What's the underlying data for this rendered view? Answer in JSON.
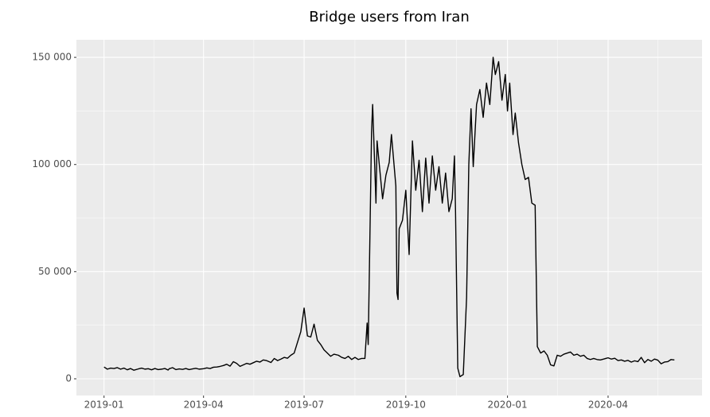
{
  "chart_data": {
    "type": "line",
    "title": "Bridge users from Iran",
    "x": [
      "2019-01-01",
      "2019-01-04",
      "2019-01-07",
      "2019-01-10",
      "2019-01-13",
      "2019-01-16",
      "2019-01-19",
      "2019-01-22",
      "2019-01-25",
      "2019-01-28",
      "2019-02-01",
      "2019-02-04",
      "2019-02-07",
      "2019-02-10",
      "2019-02-13",
      "2019-02-16",
      "2019-02-19",
      "2019-02-22",
      "2019-02-25",
      "2019-02-28",
      "2019-03-01",
      "2019-03-04",
      "2019-03-07",
      "2019-03-10",
      "2019-03-13",
      "2019-03-16",
      "2019-03-19",
      "2019-03-22",
      "2019-03-25",
      "2019-03-28",
      "2019-04-01",
      "2019-04-04",
      "2019-04-07",
      "2019-04-10",
      "2019-04-13",
      "2019-04-16",
      "2019-04-19",
      "2019-04-22",
      "2019-04-25",
      "2019-04-28",
      "2019-05-01",
      "2019-05-04",
      "2019-05-07",
      "2019-05-10",
      "2019-05-13",
      "2019-05-16",
      "2019-05-19",
      "2019-05-22",
      "2019-05-25",
      "2019-05-28",
      "2019-06-01",
      "2019-06-04",
      "2019-06-07",
      "2019-06-10",
      "2019-06-13",
      "2019-06-16",
      "2019-06-19",
      "2019-06-22",
      "2019-06-25",
      "2019-06-28",
      "2019-07-01",
      "2019-07-04",
      "2019-07-07",
      "2019-07-10",
      "2019-07-13",
      "2019-07-16",
      "2019-07-19",
      "2019-07-22",
      "2019-07-25",
      "2019-07-28",
      "2019-08-01",
      "2019-08-04",
      "2019-08-07",
      "2019-08-10",
      "2019-08-13",
      "2019-08-16",
      "2019-08-19",
      "2019-08-22",
      "2019-08-25",
      "2019-08-27",
      "2019-08-28",
      "2019-08-31",
      "2019-09-01",
      "2019-09-04",
      "2019-09-05",
      "2019-09-07",
      "2019-09-10",
      "2019-09-13",
      "2019-09-16",
      "2019-09-18",
      "2019-09-19",
      "2019-09-22",
      "2019-09-23",
      "2019-09-24",
      "2019-09-25",
      "2019-09-28",
      "2019-10-01",
      "2019-10-04",
      "2019-10-07",
      "2019-10-10",
      "2019-10-13",
      "2019-10-16",
      "2019-10-19",
      "2019-10-22",
      "2019-10-25",
      "2019-10-28",
      "2019-10-31",
      "2019-11-03",
      "2019-11-06",
      "2019-11-09",
      "2019-11-12",
      "2019-11-14",
      "2019-11-15",
      "2019-11-17",
      "2019-11-19",
      "2019-11-22",
      "2019-11-25",
      "2019-11-27",
      "2019-11-29",
      "2019-12-01",
      "2019-12-04",
      "2019-12-07",
      "2019-12-10",
      "2019-12-13",
      "2019-12-16",
      "2019-12-19",
      "2019-12-21",
      "2019-12-24",
      "2019-12-27",
      "2019-12-30",
      "2020-01-01",
      "2020-01-03",
      "2020-01-06",
      "2020-01-08",
      "2020-01-11",
      "2020-01-14",
      "2020-01-17",
      "2020-01-20",
      "2020-01-23",
      "2020-01-26",
      "2020-01-28",
      "2020-01-31",
      "2020-02-03",
      "2020-02-06",
      "2020-02-09",
      "2020-02-12",
      "2020-02-15",
      "2020-02-18",
      "2020-02-21",
      "2020-02-24",
      "2020-02-27",
      "2020-03-01",
      "2020-03-04",
      "2020-03-07",
      "2020-03-10",
      "2020-03-13",
      "2020-03-16",
      "2020-03-19",
      "2020-03-22",
      "2020-03-25",
      "2020-03-28",
      "2020-04-01",
      "2020-04-04",
      "2020-04-07",
      "2020-04-10",
      "2020-04-13",
      "2020-04-16",
      "2020-04-19",
      "2020-04-22",
      "2020-04-25",
      "2020-04-28",
      "2020-05-01",
      "2020-05-04",
      "2020-05-07",
      "2020-05-10",
      "2020-05-13",
      "2020-05-16",
      "2020-05-19",
      "2020-05-22",
      "2020-05-25",
      "2020-05-28",
      "2020-05-31"
    ],
    "values": [
      5500,
      4500,
      5000,
      4800,
      5200,
      4500,
      5000,
      4200,
      4800,
      4000,
      4600,
      5000,
      4500,
      4700,
      4200,
      4800,
      4300,
      4500,
      4800,
      4100,
      4700,
      5200,
      4300,
      4600,
      4400,
      4800,
      4300,
      4600,
      4900,
      4500,
      4700,
      5100,
      4800,
      5400,
      5500,
      5800,
      6200,
      6800,
      5900,
      8000,
      7200,
      5800,
      6500,
      7200,
      6800,
      7500,
      8200,
      7800,
      8800,
      8500,
      7600,
      9500,
      8500,
      9200,
      10000,
      9600,
      11000,
      12000,
      17000,
      22000,
      33000,
      20000,
      19500,
      25500,
      18000,
      16000,
      13500,
      12000,
      10500,
      11500,
      11000,
      10000,
      9500,
      10500,
      9000,
      10000,
      9000,
      9500,
      9500,
      26000,
      16000,
      115000,
      128000,
      82000,
      111000,
      100000,
      84000,
      95000,
      101000,
      114000,
      108000,
      90000,
      40000,
      37000,
      70000,
      74000,
      88000,
      58000,
      111000,
      88000,
      102000,
      78000,
      103000,
      82000,
      104000,
      88000,
      99000,
      82000,
      96000,
      78000,
      84000,
      104000,
      78000,
      5000,
      1000,
      2000,
      38000,
      100000,
      126000,
      99000,
      128000,
      135000,
      122000,
      138000,
      128000,
      150000,
      142000,
      148000,
      130000,
      142000,
      125000,
      138000,
      114000,
      124000,
      110000,
      100000,
      93000,
      94000,
      82000,
      81000,
      15000,
      12000,
      13000,
      11000,
      6500,
      6000,
      11000,
      10500,
      11500,
      12000,
      12500,
      11000,
      11500,
      10500,
      11000,
      9500,
      9000,
      9500,
      9000,
      8800,
      9200,
      9800,
      9200,
      9600,
      8500,
      8800,
      8200,
      8600,
      7800,
      8400,
      8000,
      10000,
      7500,
      9000,
      8200,
      9200,
      8700,
      7000,
      7800,
      8000,
      9000,
      8800
    ],
    "color": "#000000",
    "xlim": [
      "2018-12-07",
      "2020-06-25"
    ],
    "xticks": [
      "2019-01",
      "2019-04",
      "2019-07",
      "2019-10",
      "2020-01",
      "2020-04"
    ],
    "ylim": [
      -7800,
      158200
    ],
    "yticks": [
      0,
      {
        "value": 50000,
        "label": "50 000"
      },
      {
        "value": 100000,
        "label": "100 000"
      },
      {
        "value": 150000,
        "label": "150 000"
      }
    ],
    "grid": true,
    "minor_grid": true
  }
}
